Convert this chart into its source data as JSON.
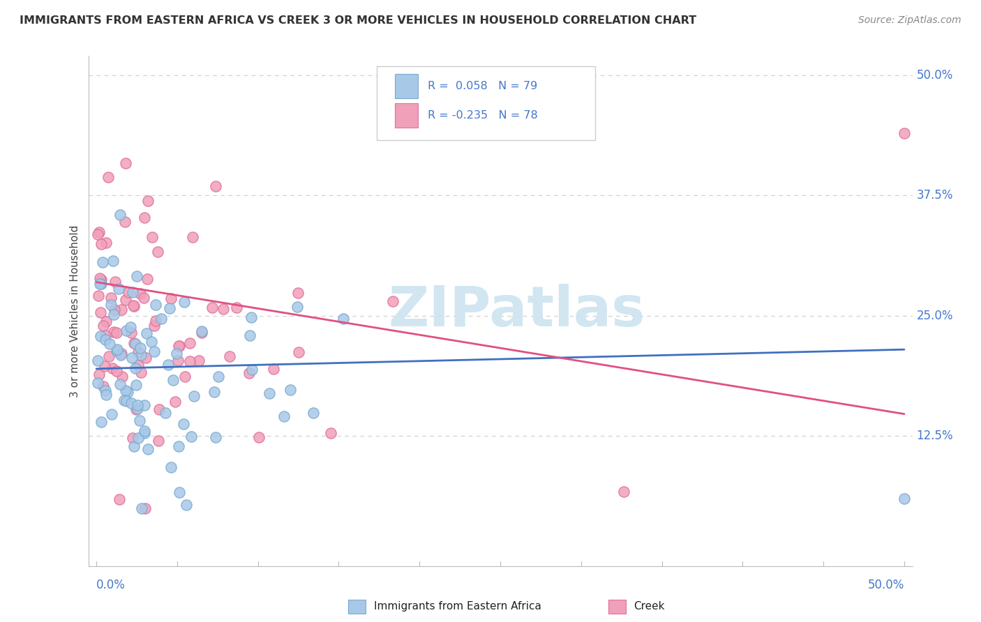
{
  "title": "IMMIGRANTS FROM EASTERN AFRICA VS CREEK 3 OR MORE VEHICLES IN HOUSEHOLD CORRELATION CHART",
  "source": "Source: ZipAtlas.com",
  "ylabel": "3 or more Vehicles in Household",
  "color_blue": "#a8c8e8",
  "color_pink": "#f0a0b8",
  "color_blue_edge": "#7aaad0",
  "color_pink_edge": "#e070a0",
  "color_blue_line": "#4070c0",
  "color_pink_line": "#e05080",
  "watermark_color": "#cce4f0",
  "grid_color": "#cccccc",
  "axis_color": "#bbbbbb",
  "label_color": "#4477cc",
  "title_color": "#333333",
  "source_color": "#888888",
  "xlim": [
    0.0,
    0.5
  ],
  "ylim": [
    0.0,
    0.5
  ],
  "ytick_vals": [
    0.125,
    0.25,
    0.375,
    0.5
  ],
  "ytick_labels": [
    "12.5%",
    "25.0%",
    "37.5%",
    "50.0%"
  ],
  "xtick_left": "0.0%",
  "xtick_right": "50.0%"
}
